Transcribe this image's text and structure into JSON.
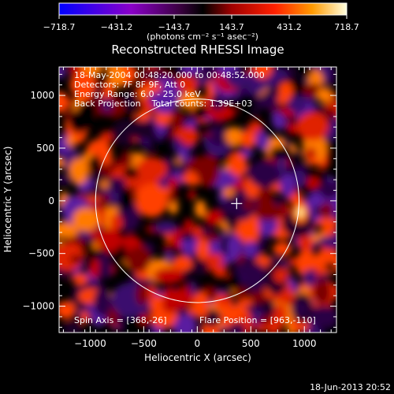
{
  "chart_data": {
    "type": "heatmap",
    "title": "Reconstructed RHESSI Image",
    "xlabel": "Heliocentric X (arcsec)",
    "ylabel": "Heliocentric Y (arcsec)",
    "xlim": [
      -1290,
      1300
    ],
    "ylim": [
      -1250,
      1270
    ],
    "x_ticks": [
      -1000,
      -500,
      0,
      500,
      1000
    ],
    "y_ticks": [
      -1000,
      -500,
      0,
      500,
      1000
    ],
    "colorbar": {
      "min": -718.7,
      "max": 718.7,
      "tick_labels": [
        "-718.7",
        "-431.2",
        "-143.7",
        "143.7",
        "431.2",
        "718.7"
      ],
      "unit_label": "(photons cm⁻² s⁻¹ asec⁻²)"
    },
    "info_lines": [
      "18-May-2004 00:48:20.000 to 00:48:52.000",
      "Detectors: 7F 8F 9F, Att 0",
      "Energy Range: 6.0 - 25.0 keV",
      "Back Projection    Total counts: 1.39E+03"
    ],
    "spin_axis_label": "Spin Axis = [368,-26]",
    "flare_position_label": "Flare Position = [963,-110]",
    "spin_axis": [
      368,
      -26
    ],
    "flare_position": [
      963,
      -110
    ],
    "solar_limb_radius": 950,
    "timestamp": "18-Jun-2013 20:52"
  }
}
